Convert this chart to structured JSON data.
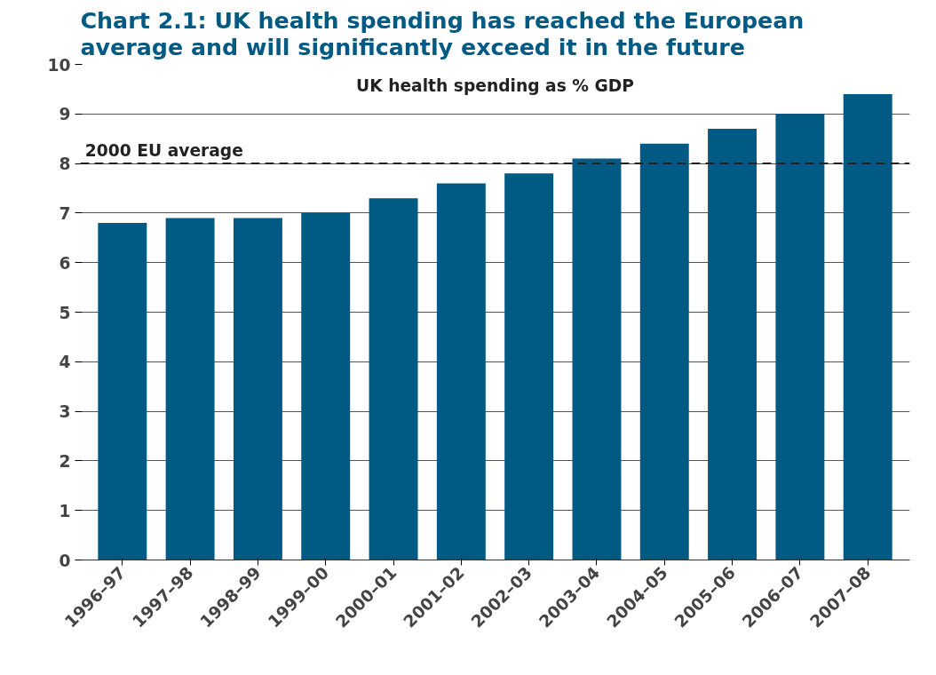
{
  "chart_data": {
    "type": "bar",
    "title": "Chart 2.1: UK health spending has reached the European average and will significantly exceed it in the future",
    "categories": [
      "1996–97",
      "1997–98",
      "1998–99",
      "1999–00",
      "2000–01",
      "2001–02",
      "2002–03",
      "2003–04",
      "2004–05",
      "2005–06",
      "2006–07",
      "2007–08"
    ],
    "values": [
      6.8,
      6.9,
      6.9,
      7.0,
      7.3,
      7.6,
      7.8,
      8.1,
      8.4,
      8.7,
      9.0,
      9.4
    ],
    "color": "#005a84",
    "ylim": [
      0,
      10
    ],
    "yticks": [
      0,
      1,
      2,
      3,
      4,
      5,
      6,
      7,
      8,
      9,
      10
    ],
    "grid": "y",
    "annotations": [
      "UK health spending as % GDP"
    ],
    "ref_lines": [
      {
        "axis": "y",
        "value": 8,
        "label": "2000 EU average",
        "color": "#222222",
        "line_style": "dashed"
      }
    ]
  }
}
